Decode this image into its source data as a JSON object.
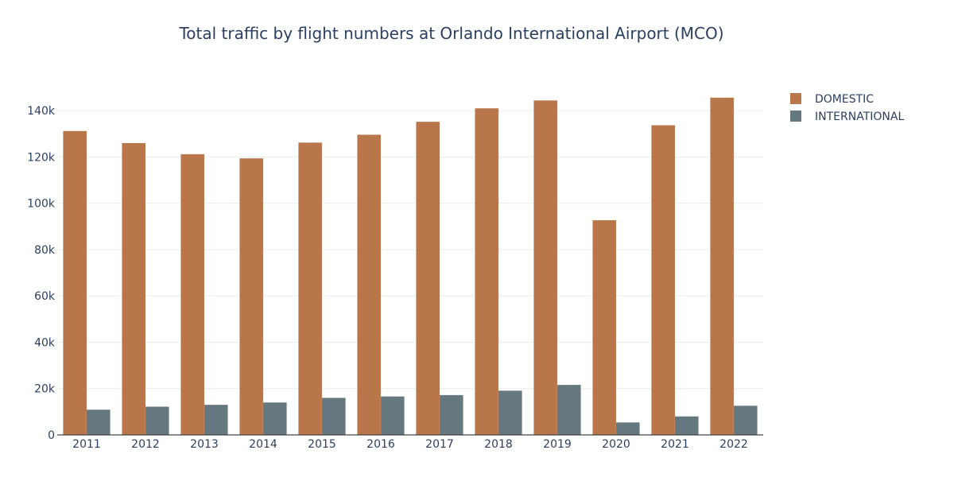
{
  "chart_data": {
    "type": "bar",
    "title": "Total traffic by flight numbers at Orlando International Airport (MCO)",
    "xlabel": "",
    "ylabel": "",
    "categories": [
      "2011",
      "2012",
      "2013",
      "2014",
      "2015",
      "2016",
      "2017",
      "2018",
      "2019",
      "2020",
      "2021",
      "2022"
    ],
    "series": [
      {
        "name": "DOMESTIC",
        "color": "#b9764b",
        "values": [
          131200,
          126000,
          121200,
          119400,
          126200,
          129600,
          135200,
          141000,
          144400,
          92700,
          133700,
          145600
        ]
      },
      {
        "name": "INTERNATIONAL",
        "color": "#66787f",
        "values": [
          10900,
          12200,
          13000,
          14000,
          16000,
          16600,
          17200,
          19100,
          21600,
          5400,
          8000,
          12600
        ]
      }
    ],
    "ylim": [
      0,
      150000
    ],
    "yticks": [
      0,
      20000,
      40000,
      60000,
      80000,
      100000,
      120000,
      140000
    ],
    "ytick_labels": [
      "0",
      "20k",
      "40k",
      "60k",
      "80k",
      "100k",
      "120k",
      "140k"
    ],
    "grid": true,
    "legend_position": "top-right"
  }
}
